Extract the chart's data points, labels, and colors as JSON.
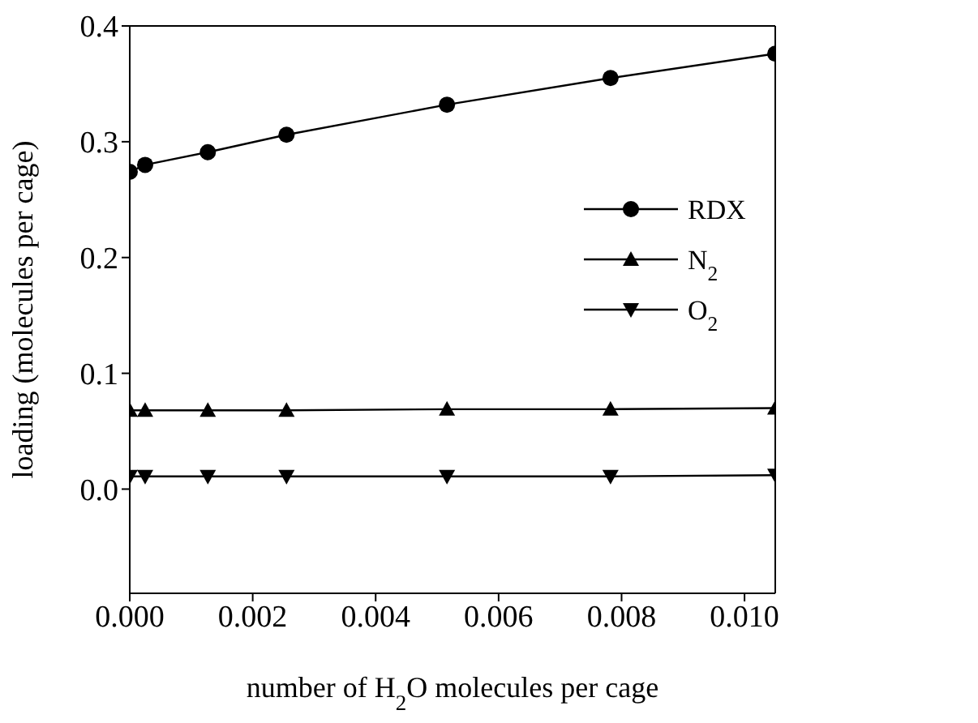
{
  "chart_data": {
    "type": "line",
    "xlabel": "number of H$_{2}$O molecules per cage",
    "ylabel": "loading (molecules per cage)",
    "x": [
      0,
      0.00025,
      0.00127,
      0.00255,
      0.00516,
      0.00782,
      0.0105
    ],
    "series": [
      {
        "name": "RDX",
        "color": "#000000",
        "marker": "circle",
        "values": [
          0.274,
          0.28,
          0.291,
          0.306,
          0.332,
          0.355,
          0.376
        ]
      },
      {
        "name": "N$_{2}$",
        "color": "#000000",
        "marker": "triangle",
        "values": [
          0.068,
          0.068,
          0.068,
          0.068,
          0.069,
          0.069,
          0.07
        ]
      },
      {
        "name": "O$_{2}$",
        "color": "#000000",
        "marker": "triangle-down",
        "values": [
          0.011,
          0.011,
          0.011,
          0.011,
          0.011,
          0.011,
          0.012
        ]
      }
    ],
    "xlim": [
      0,
      0.0105
    ],
    "xticks": [
      {
        "value": 0,
        "label": "0.000"
      },
      {
        "value": 0.002,
        "label": "0.002"
      },
      {
        "value": 0.004,
        "label": "0.004"
      },
      {
        "value": 0.006,
        "label": "0.006"
      },
      {
        "value": 0.008,
        "label": "0.008"
      },
      {
        "value": 0.01,
        "label": "0.010"
      }
    ],
    "ylim": [
      -0.09,
      0.4
    ],
    "yticks": [
      {
        "value": 0,
        "label": "0.0"
      },
      0.1,
      0.2,
      0.3,
      0.4
    ],
    "grid": false,
    "legend": "right",
    "line_style": "solid"
  }
}
